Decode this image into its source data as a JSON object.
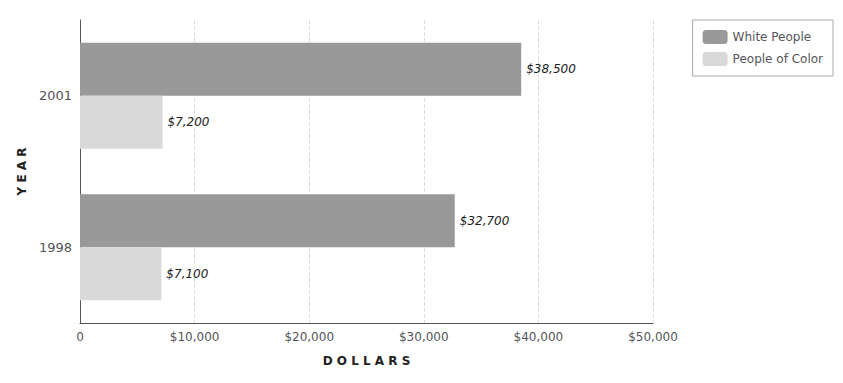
{
  "chart_data": {
    "type": "bar",
    "orientation": "horizontal",
    "categories": [
      "2001",
      "1998"
    ],
    "series": [
      {
        "name": "White People",
        "color": "#999999",
        "values": [
          38500,
          32700
        ],
        "value_labels": [
          "$38,500",
          "$32,700"
        ]
      },
      {
        "name": "People of Color",
        "color": "#d9d9d9",
        "values": [
          7200,
          7100
        ],
        "value_labels": [
          "$7,200",
          "$7,100"
        ]
      }
    ],
    "xlabel": "D O L L A R S",
    "ylabel": "Y E A R",
    "xlim": [
      0,
      50000
    ],
    "xticks": [
      0,
      {
        "value": 10000,
        "label": "$10,000"
      },
      {
        "value": 20000,
        "label": "$20,000"
      },
      {
        "value": 30000,
        "label": "$30,000"
      },
      {
        "value": 40000,
        "label": "$40,000"
      },
      {
        "value": 50000,
        "label": "$50,000"
      }
    ],
    "grid": true,
    "legend": "upper right",
    "data_labels": true
  }
}
